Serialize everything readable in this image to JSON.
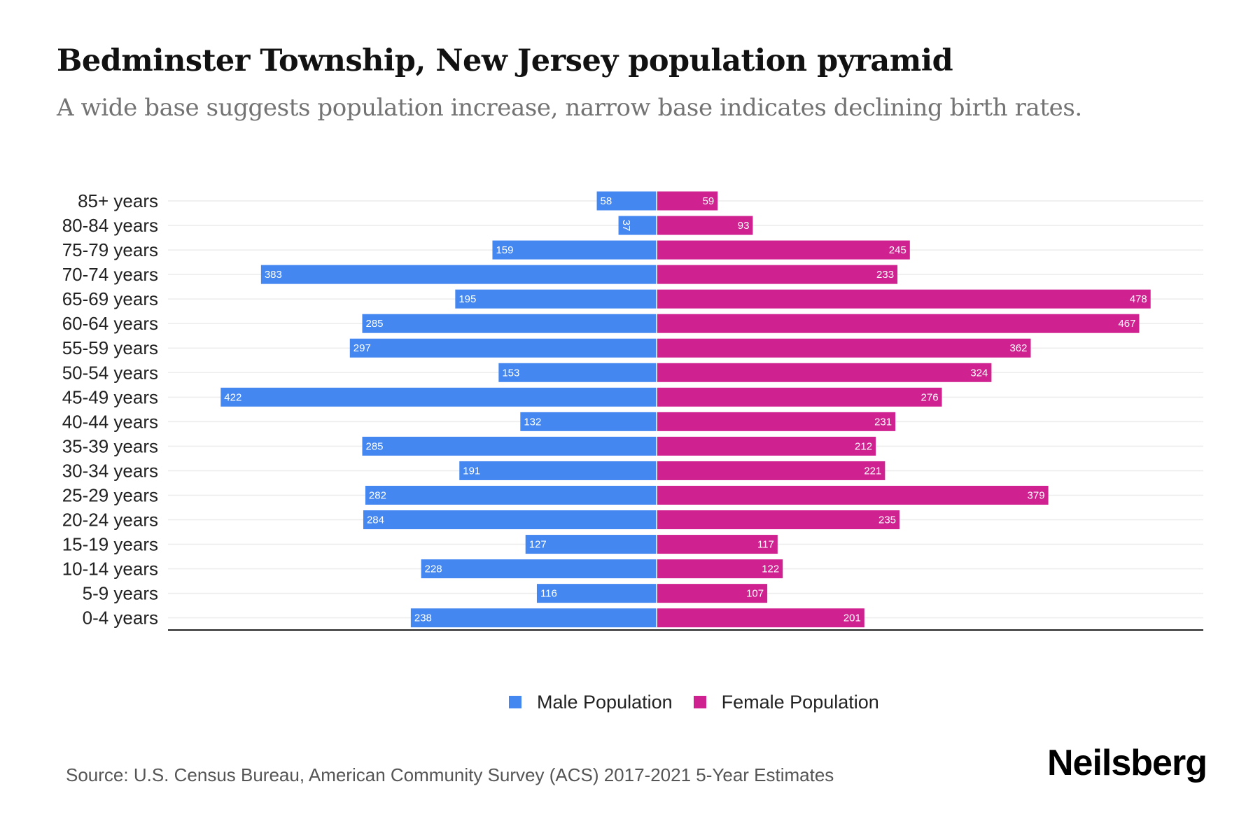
{
  "header": {
    "title": "Bedminster Township, New Jersey population pyramid",
    "subtitle": "A wide base suggests population increase, narrow base indicates declining birth rates."
  },
  "chart_data": {
    "type": "bar",
    "orientation": "horizontal-pyramid",
    "title": "Bedminster Township, New Jersey population pyramid",
    "subtitle": "A wide base suggests population increase, narrow base indicates declining birth rates.",
    "xlabel": "",
    "ylabel": "",
    "grid": true,
    "legend_position": "bottom-center",
    "categories": [
      "85+ years",
      "80-84 years",
      "75-79 years",
      "70-74 years",
      "65-69 years",
      "60-64 years",
      "55-59 years",
      "50-54 years",
      "45-49 years",
      "40-44 years",
      "35-39 years",
      "30-34 years",
      "25-29 years",
      "20-24 years",
      "15-19 years",
      "10-14 years",
      "5-9 years",
      "0-4 years"
    ],
    "series": [
      {
        "name": "Male Population",
        "color": "#4487F0",
        "side": "left",
        "values": [
          58,
          37,
          159,
          383,
          195,
          285,
          297,
          153,
          422,
          132,
          285,
          191,
          282,
          284,
          127,
          228,
          116,
          238
        ]
      },
      {
        "name": "Female Population",
        "color": "#CF218F",
        "side": "right",
        "values": [
          59,
          93,
          245,
          233,
          478,
          467,
          362,
          324,
          276,
          231,
          212,
          221,
          379,
          235,
          117,
          122,
          107,
          201
        ]
      }
    ],
    "xlim": [
      -473,
      529
    ]
  },
  "legend": {
    "items": [
      {
        "label": "Male Population",
        "color": "#4487F0"
      },
      {
        "label": "Female Population",
        "color": "#CF218F"
      }
    ]
  },
  "footer": {
    "source": "Source: U.S. Census Bureau, American Community Survey (ACS) 2017-2021 5-Year Estimates",
    "logo": "Neilsberg"
  }
}
